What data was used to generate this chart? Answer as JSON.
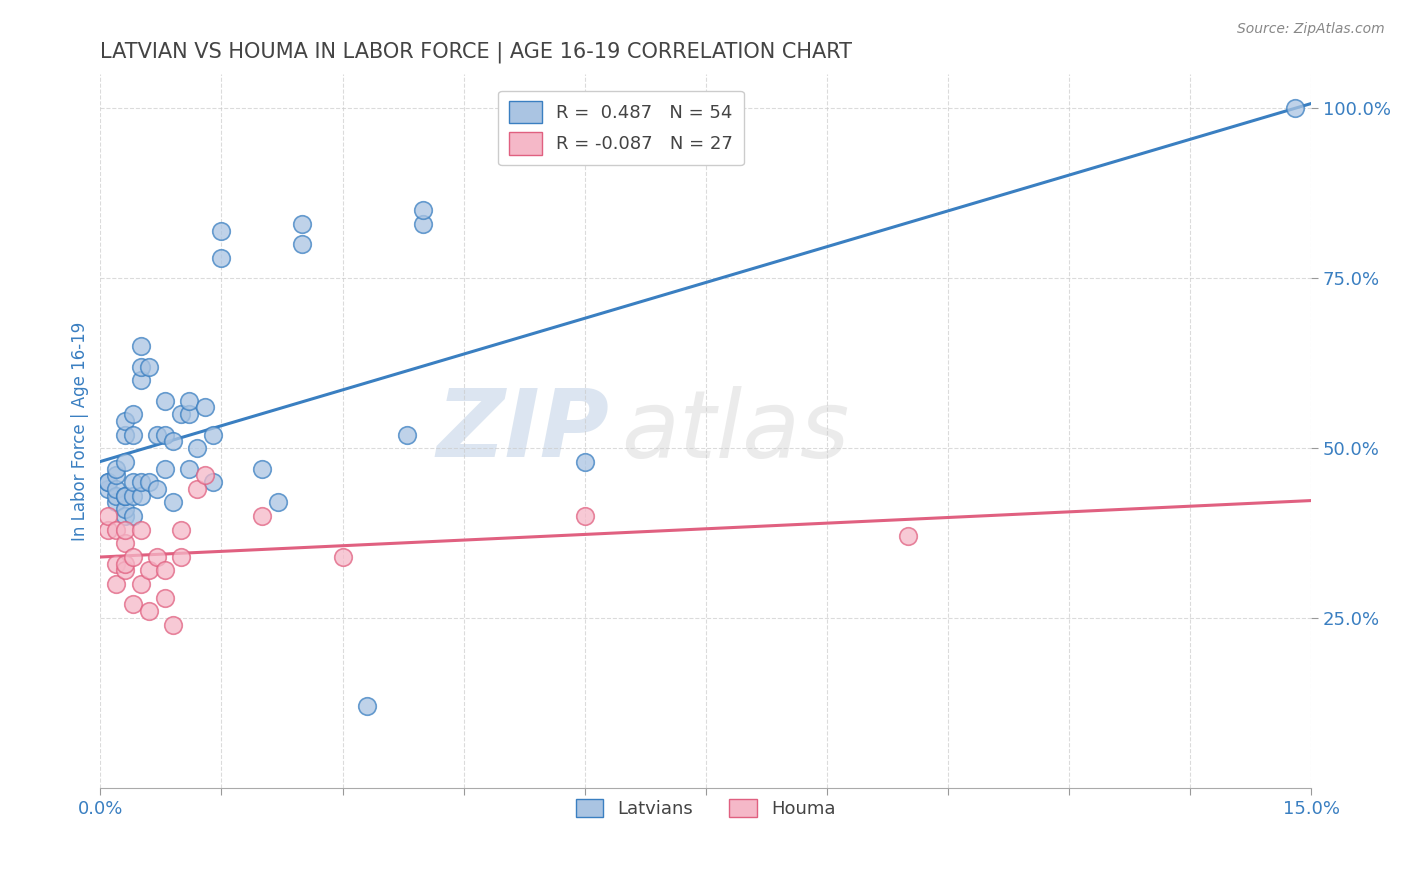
{
  "title": "LATVIAN VS HOUMA IN LABOR FORCE | AGE 16-19 CORRELATION CHART",
  "source": "Source: ZipAtlas.com",
  "ylabel": "In Labor Force | Age 16-19",
  "xlim": [
    0.0,
    0.15
  ],
  "ylim": [
    0.0,
    1.05
  ],
  "xticks": [
    0.0,
    0.015,
    0.03,
    0.045,
    0.06,
    0.075,
    0.09,
    0.105,
    0.12,
    0.135,
    0.15
  ],
  "xticklabels": [
    "0.0%",
    "",
    "",
    "",
    "",
    "",
    "",
    "",
    "",
    "",
    "15.0%"
  ],
  "yticks": [
    0.25,
    0.5,
    0.75,
    1.0
  ],
  "yticklabels": [
    "25.0%",
    "50.0%",
    "75.0%",
    "100.0%"
  ],
  "latvian_color": "#aac4e2",
  "latvian_line_color": "#3a7fc1",
  "houma_color": "#f5b8c8",
  "houma_line_color": "#e06080",
  "latvian_scatter_x": [
    0.001,
    0.001,
    0.001,
    0.002,
    0.002,
    0.002,
    0.002,
    0.002,
    0.003,
    0.003,
    0.003,
    0.003,
    0.003,
    0.003,
    0.003,
    0.004,
    0.004,
    0.004,
    0.004,
    0.004,
    0.005,
    0.005,
    0.005,
    0.005,
    0.005,
    0.006,
    0.006,
    0.007,
    0.007,
    0.008,
    0.008,
    0.008,
    0.009,
    0.009,
    0.01,
    0.011,
    0.011,
    0.011,
    0.012,
    0.013,
    0.014,
    0.014,
    0.015,
    0.015,
    0.02,
    0.022,
    0.025,
    0.025,
    0.033,
    0.038,
    0.04,
    0.04,
    0.06,
    0.148
  ],
  "latvian_scatter_y": [
    0.44,
    0.45,
    0.45,
    0.42,
    0.43,
    0.44,
    0.46,
    0.47,
    0.4,
    0.41,
    0.43,
    0.43,
    0.48,
    0.52,
    0.54,
    0.4,
    0.43,
    0.45,
    0.52,
    0.55,
    0.43,
    0.45,
    0.6,
    0.62,
    0.65,
    0.45,
    0.62,
    0.44,
    0.52,
    0.47,
    0.52,
    0.57,
    0.42,
    0.51,
    0.55,
    0.47,
    0.55,
    0.57,
    0.5,
    0.56,
    0.45,
    0.52,
    0.78,
    0.82,
    0.47,
    0.42,
    0.8,
    0.83,
    0.12,
    0.52,
    0.83,
    0.85,
    0.48,
    1.0
  ],
  "houma_scatter_x": [
    0.001,
    0.001,
    0.002,
    0.002,
    0.002,
    0.003,
    0.003,
    0.003,
    0.003,
    0.004,
    0.004,
    0.005,
    0.005,
    0.006,
    0.006,
    0.007,
    0.008,
    0.008,
    0.009,
    0.01,
    0.01,
    0.012,
    0.013,
    0.02,
    0.03,
    0.06,
    0.1
  ],
  "houma_scatter_y": [
    0.38,
    0.4,
    0.3,
    0.33,
    0.38,
    0.32,
    0.33,
    0.36,
    0.38,
    0.27,
    0.34,
    0.3,
    0.38,
    0.26,
    0.32,
    0.34,
    0.28,
    0.32,
    0.24,
    0.34,
    0.38,
    0.44,
    0.46,
    0.4,
    0.34,
    0.4,
    0.37
  ],
  "background_color": "#ffffff",
  "grid_color": "#cccccc",
  "title_color": "#444444",
  "label_color": "#3a7fc1",
  "watermark_zip": "ZIP",
  "watermark_atlas": "atlas",
  "legend_text_blue": "R =  0.487   N = 54",
  "legend_text_pink": "R = -0.087   N = 27"
}
